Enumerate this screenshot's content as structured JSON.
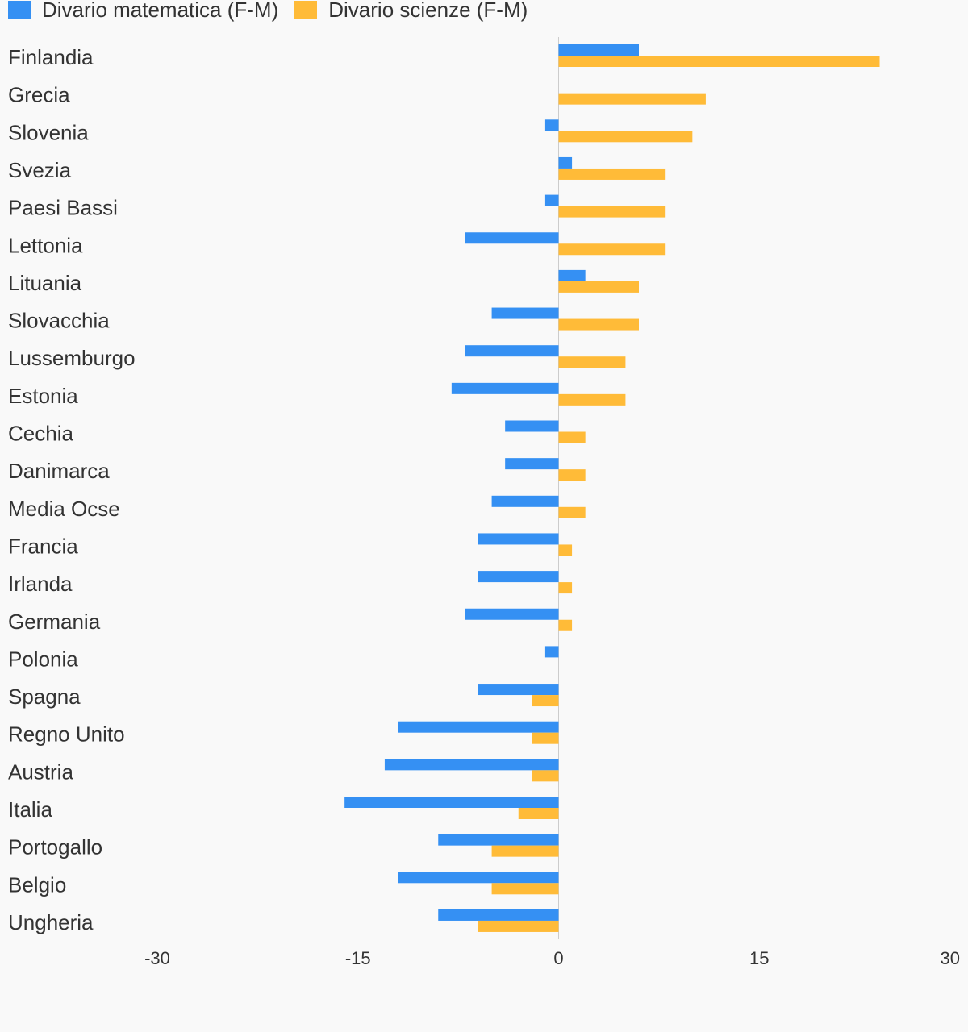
{
  "chart_data": {
    "type": "bar",
    "orientation": "horizontal",
    "categories": [
      "Finlandia",
      "Grecia",
      "Slovenia",
      "Svezia",
      "Paesi Bassi",
      "Lettonia",
      "Lituania",
      "Slovacchia",
      "Lussemburgo",
      "Estonia",
      "Cechia",
      "Danimarca",
      "Media Ocse",
      "Francia",
      "Irlanda",
      "Germania",
      "Polonia",
      "Spagna",
      "Regno Unito",
      "Austria",
      "Italia",
      "Portogallo",
      "Belgio",
      "Ungheria"
    ],
    "series": [
      {
        "name": "Divario matematica (F-M)",
        "color": "#3590f3",
        "values": [
          6,
          0,
          -1,
          1,
          -1,
          -7,
          2,
          -5,
          -7,
          -8,
          -4,
          -4,
          -5,
          -6,
          -6,
          -7,
          -1,
          -6,
          -12,
          -13,
          -16,
          -9,
          -12,
          -9
        ]
      },
      {
        "name": "Divario scienze (F-M)",
        "color": "#ffbb38",
        "values": [
          24,
          11,
          10,
          8,
          8,
          8,
          6,
          6,
          5,
          5,
          2,
          2,
          2,
          1,
          1,
          1,
          0,
          -2,
          -2,
          -2,
          -3,
          -5,
          -5,
          -6
        ]
      }
    ],
    "xlim": [
      -30,
      30
    ],
    "xticks": [
      "-30",
      "-15",
      "0",
      "15",
      "30"
    ],
    "legend_position": "top-left",
    "grid": false,
    "title": "",
    "xlabel": "",
    "ylabel": ""
  }
}
